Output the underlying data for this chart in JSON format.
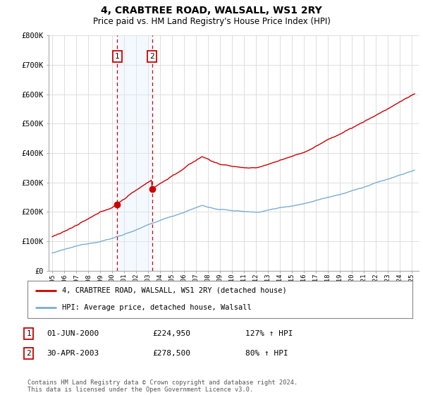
{
  "title": "4, CRABTREE ROAD, WALSALL, WS1 2RY",
  "subtitle": "Price paid vs. HM Land Registry's House Price Index (HPI)",
  "title_fontsize": 10,
  "subtitle_fontsize": 8.5,
  "ylim": [
    0,
    800000
  ],
  "yticks": [
    0,
    100000,
    200000,
    300000,
    400000,
    500000,
    600000,
    700000,
    800000
  ],
  "ytick_labels": [
    "£0",
    "£100K",
    "£200K",
    "£300K",
    "£400K",
    "£500K",
    "£600K",
    "£700K",
    "£800K"
  ],
  "xlim_start": 1994.7,
  "xlim_end": 2025.6,
  "sale1_year": 2000.42,
  "sale1_price": 224950,
  "sale2_year": 2003.33,
  "sale2_price": 278500,
  "red_color": "#cc0000",
  "blue_color": "#7aadd4",
  "shade_color": "#ddeeff",
  "legend_label_red": "4, CRABTREE ROAD, WALSALL, WS1 2RY (detached house)",
  "legend_label_blue": "HPI: Average price, detached house, Walsall",
  "table_rows": [
    {
      "num": "1",
      "date": "01-JUN-2000",
      "price": "£224,950",
      "hpi": "127% ↑ HPI"
    },
    {
      "num": "2",
      "date": "30-APR-2003",
      "price": "£278,500",
      "hpi": "80% ↑ HPI"
    }
  ],
  "footnote": "Contains HM Land Registry data © Crown copyright and database right 2024.\nThis data is licensed under the Open Government Licence v3.0.",
  "background_color": "#ffffff",
  "grid_color": "#dddddd"
}
